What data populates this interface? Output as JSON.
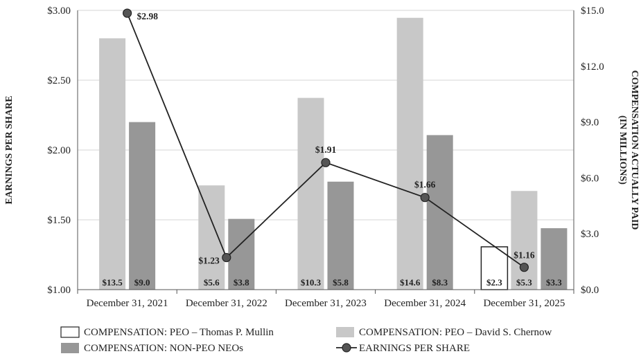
{
  "chart_data": {
    "type": "bar",
    "categories": [
      "December 31, 2021",
      "December 31, 2022",
      "December 31, 2023",
      "December 31, 2024",
      "December 31, 2025"
    ],
    "series": [
      {
        "name": "COMPENSATION: PEO – Thomas P. Mullin",
        "axis": "right",
        "color": "#ffffff",
        "stroke": "#222222",
        "values": [
          null,
          null,
          null,
          null,
          2.3
        ],
        "labels": [
          "",
          "",
          "",
          "",
          "$2.3"
        ]
      },
      {
        "name": "COMPENSATION: PEO – David S. Chernow",
        "axis": "right",
        "color": "#c8c8c8",
        "values": [
          13.5,
          5.6,
          10.3,
          14.6,
          5.3
        ],
        "labels": [
          "$13.5",
          "$5.6",
          "$10.3",
          "$14.6",
          "$5.3"
        ]
      },
      {
        "name": "COMPENSATION: NON-PEO NEOs",
        "axis": "right",
        "color": "#979797",
        "values": [
          9.0,
          3.8,
          5.8,
          8.3,
          3.3
        ],
        "labels": [
          "$9.0",
          "$3.8",
          "$5.8",
          "$8.3",
          "$3.3"
        ]
      },
      {
        "name": "EARNINGS PER SHARE",
        "type": "line",
        "axis": "left",
        "color": "#222222",
        "marker_color": "#555555",
        "values": [
          2.98,
          1.23,
          1.91,
          1.66,
          1.16
        ],
        "labels": [
          "$2.98",
          "$1.23",
          "$1.91",
          "$1.66",
          "$1.16"
        ]
      }
    ],
    "ylabel_left": "EARNINGS PER SHARE",
    "ylabel_right_line1": "COMPENSATION ACTUALLY PAID",
    "ylabel_right_line2": "(IN MILLIONS)",
    "ylim_left": [
      1.0,
      3.0
    ],
    "yticks_left": [
      "$1.00",
      "$1.50",
      "$2.00",
      "$2.50",
      "$3.00"
    ],
    "ylim_right": [
      0,
      15
    ],
    "yticks_right": [
      "$0.0",
      "$3.0",
      "$6.0",
      "$9.0",
      "$12.0",
      "$15.0"
    ],
    "grid": true,
    "legend_position": "bottom",
    "legend_order": [
      0,
      1,
      2,
      3
    ]
  }
}
